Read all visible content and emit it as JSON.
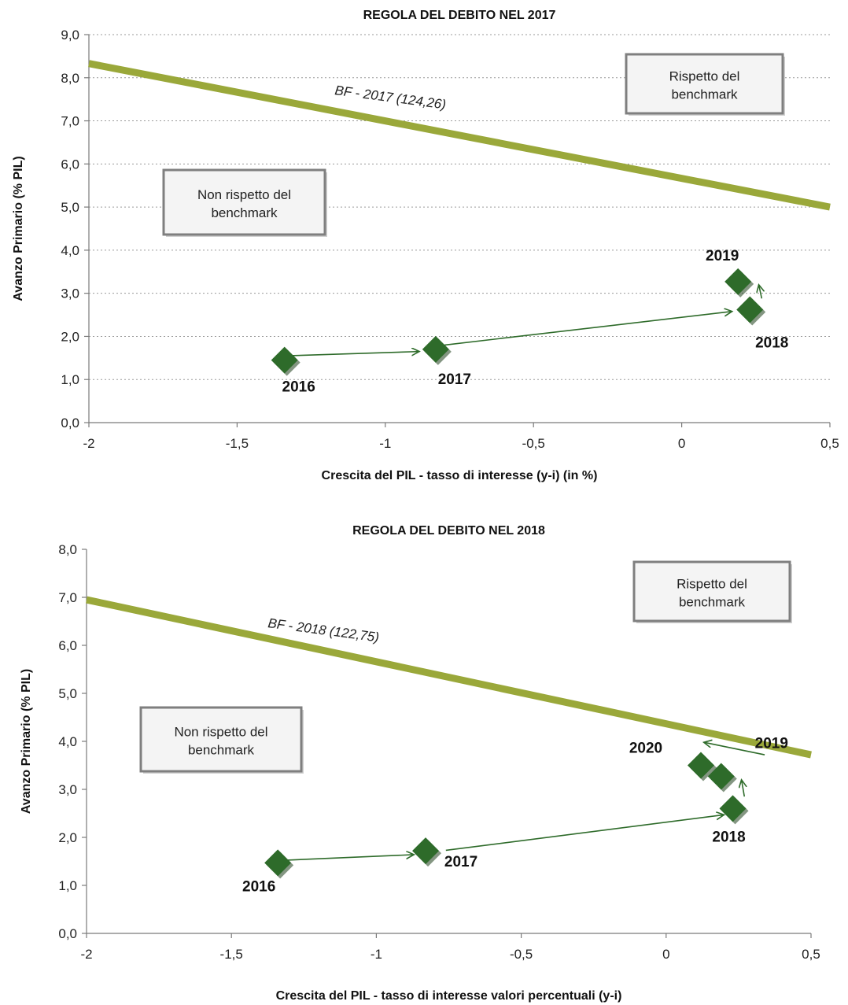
{
  "chart_data": [
    {
      "type": "scatter",
      "title": "REGOLA DEL DEBITO NEL 2017",
      "xlabel": "Crescita del PIL - tasso di interesse  (y-i)  (in %)",
      "ylabel": "Avanzo Primario (% PIL)",
      "xlim": [
        -2,
        0.5
      ],
      "ylim": [
        0,
        9
      ],
      "xticks": [
        -2,
        -1.5,
        -1,
        -0.5,
        0,
        0.5
      ],
      "xtick_labels": [
        "-2",
        "-1,5",
        "-1",
        "-0,5",
        "0",
        "0,5"
      ],
      "yticks": [
        0,
        1,
        2,
        3,
        4,
        5,
        6,
        7,
        8,
        9
      ],
      "ytick_labels": [
        "0,0",
        "1,0",
        "2,0",
        "3,0",
        "4,0",
        "5,0",
        "6,0",
        "7,0",
        "8,0",
        "9,0"
      ],
      "grid": true,
      "benchmark_line": {
        "label": "BF - 2017 (124,26)",
        "x": [
          -2,
          0.5
        ],
        "y": [
          8.33,
          5.0
        ],
        "color": "#9aa83a"
      },
      "points": [
        {
          "year": "2016",
          "x": -1.34,
          "y": 1.45
        },
        {
          "year": "2017",
          "x": -0.83,
          "y": 1.7
        },
        {
          "year": "2018",
          "x": 0.23,
          "y": 2.62
        },
        {
          "year": "2019",
          "x": 0.19,
          "y": 3.27
        }
      ],
      "point_color": "#2e6b2a",
      "zones": {
        "above": "Rispetto del benchmark",
        "below": "Non rispetto  del benchmark"
      }
    },
    {
      "type": "scatter",
      "title": "REGOLA DEL DEBITO NEL 2018",
      "xlabel": "Crescita del PIL - tasso di interesse valori percentuali (y-i)",
      "ylabel": "Avanzo Primario (% PIL)",
      "xlim": [
        -2,
        0.5
      ],
      "ylim": [
        0,
        8
      ],
      "xticks": [
        -2,
        -1.5,
        -1,
        -0.5,
        0,
        0.5
      ],
      "xtick_labels": [
        "-2",
        "-1,5",
        "-1",
        "-0,5",
        "0",
        "0,5"
      ],
      "yticks": [
        0,
        1,
        2,
        3,
        4,
        5,
        6,
        7,
        8
      ],
      "ytick_labels": [
        "0,0",
        "1,0",
        "2,0",
        "3,0",
        "4,0",
        "5,0",
        "6,0",
        "7,0",
        "8,0"
      ],
      "grid": false,
      "benchmark_line": {
        "label": "BF - 2018  (122,75)",
        "x": [
          -2,
          0.5
        ],
        "y": [
          6.95,
          3.72
        ],
        "color": "#9aa83a"
      },
      "points": [
        {
          "year": "2016",
          "x": -1.34,
          "y": 1.47
        },
        {
          "year": "2017",
          "x": -0.83,
          "y": 1.72
        },
        {
          "year": "2018",
          "x": 0.23,
          "y": 2.6
        },
        {
          "year": "2019",
          "x": 0.19,
          "y": 3.27
        },
        {
          "year": "2020",
          "x": 0.12,
          "y": 3.5
        }
      ],
      "point_color": "#2e6b2a",
      "zones": {
        "above": "Rispetto del benchmark",
        "below": "Non rispetto  del benchmark"
      }
    }
  ]
}
